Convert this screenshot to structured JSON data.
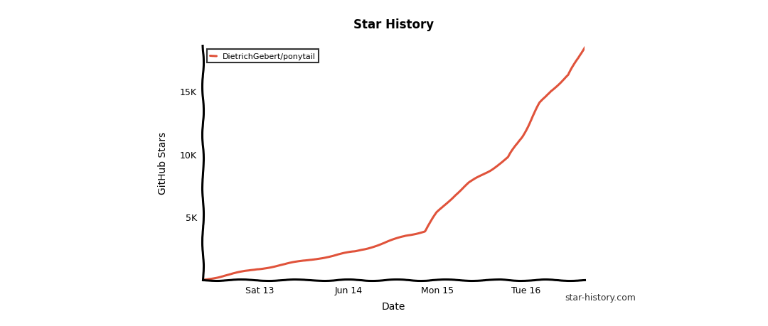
{
  "chart_data": {
    "type": "line",
    "title": "Star History",
    "x_label": "Date",
    "y_label": "GitHub Stars",
    "annotations": [
      "star-history.com"
    ],
    "x": [
      12.36,
      12.64,
      12.96,
      13.28,
      13.6,
      13.76,
      14.08,
      14.4,
      14.64,
      14.86,
      15.0,
      15.2,
      15.36,
      15.6,
      15.8,
      15.96,
      16.16,
      16.28,
      16.48,
      16.66
    ],
    "series": [
      {
        "name": "DietrichGebert/ponytail",
        "color": "#e0533b",
        "values": [
          0,
          400,
          840,
          1240,
          1630,
          1850,
          2250,
          2920,
          3480,
          3880,
          5340,
          6740,
          7700,
          8710,
          9720,
          11400,
          14040,
          15000,
          16240,
          18490
        ]
      }
    ],
    "xlim": [
      12.36,
      16.66
    ],
    "xticks": [
      {
        "value": 13,
        "label": "Sat 13"
      },
      {
        "value": 14,
        "label": "Jun 14"
      },
      {
        "value": 15,
        "label": "Mon 15"
      },
      {
        "value": 16,
        "label": "Tue 16"
      }
    ],
    "ylim": [
      0,
      18600
    ],
    "yticks": [
      {
        "value": 5000,
        "label": "5K"
      },
      {
        "value": 10000,
        "label": "10K"
      },
      {
        "value": 15000,
        "label": "15K"
      }
    ],
    "grid": false,
    "legend": "upper left"
  }
}
